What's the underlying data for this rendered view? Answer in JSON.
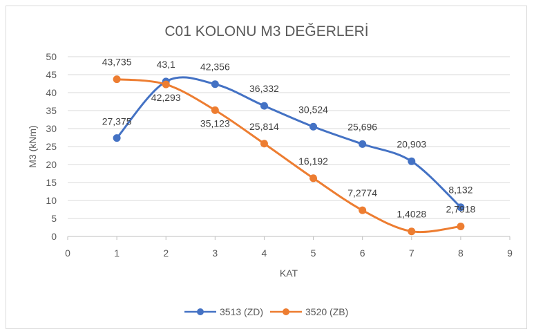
{
  "chart_data": {
    "type": "scatter",
    "title": "C01 KOLONU M3 DEĞERLERİ",
    "xlabel": "KAT",
    "ylabel": "M3 (kNm)",
    "xlim": [
      0,
      9
    ],
    "ylim": [
      0,
      50
    ],
    "xticks": [
      "0",
      "1",
      "2",
      "3",
      "4",
      "5",
      "6",
      "7",
      "8",
      "9"
    ],
    "yticks": [
      "0",
      "5",
      "10",
      "15",
      "20",
      "25",
      "30",
      "35",
      "40",
      "45",
      "50"
    ],
    "grid": true,
    "legend_position": "bottom",
    "series": [
      {
        "name": "3513 (ZD)",
        "color": "#4472c4",
        "x": [
          1,
          2,
          3,
          4,
          5,
          6,
          7,
          8
        ],
        "y": [
          27.375,
          43.1,
          42.356,
          36.332,
          30.524,
          25.696,
          20.903,
          8.132
        ],
        "labels": [
          "27,375",
          "43,1",
          "42,356",
          "36,332",
          "30,524",
          "25,696",
          "20,903",
          "8,132"
        ]
      },
      {
        "name": "3520 (ZB)",
        "color": "#ed7d31",
        "x": [
          1,
          2,
          3,
          4,
          5,
          6,
          7,
          8
        ],
        "y": [
          43.735,
          42.293,
          35.123,
          25.814,
          16.192,
          7.2774,
          1.4028,
          2.7918
        ],
        "labels": [
          "43,735",
          "42,293",
          "35,123",
          "25,814",
          "16,192",
          "7,2774",
          "1,4028",
          "2,7918"
        ]
      }
    ]
  }
}
